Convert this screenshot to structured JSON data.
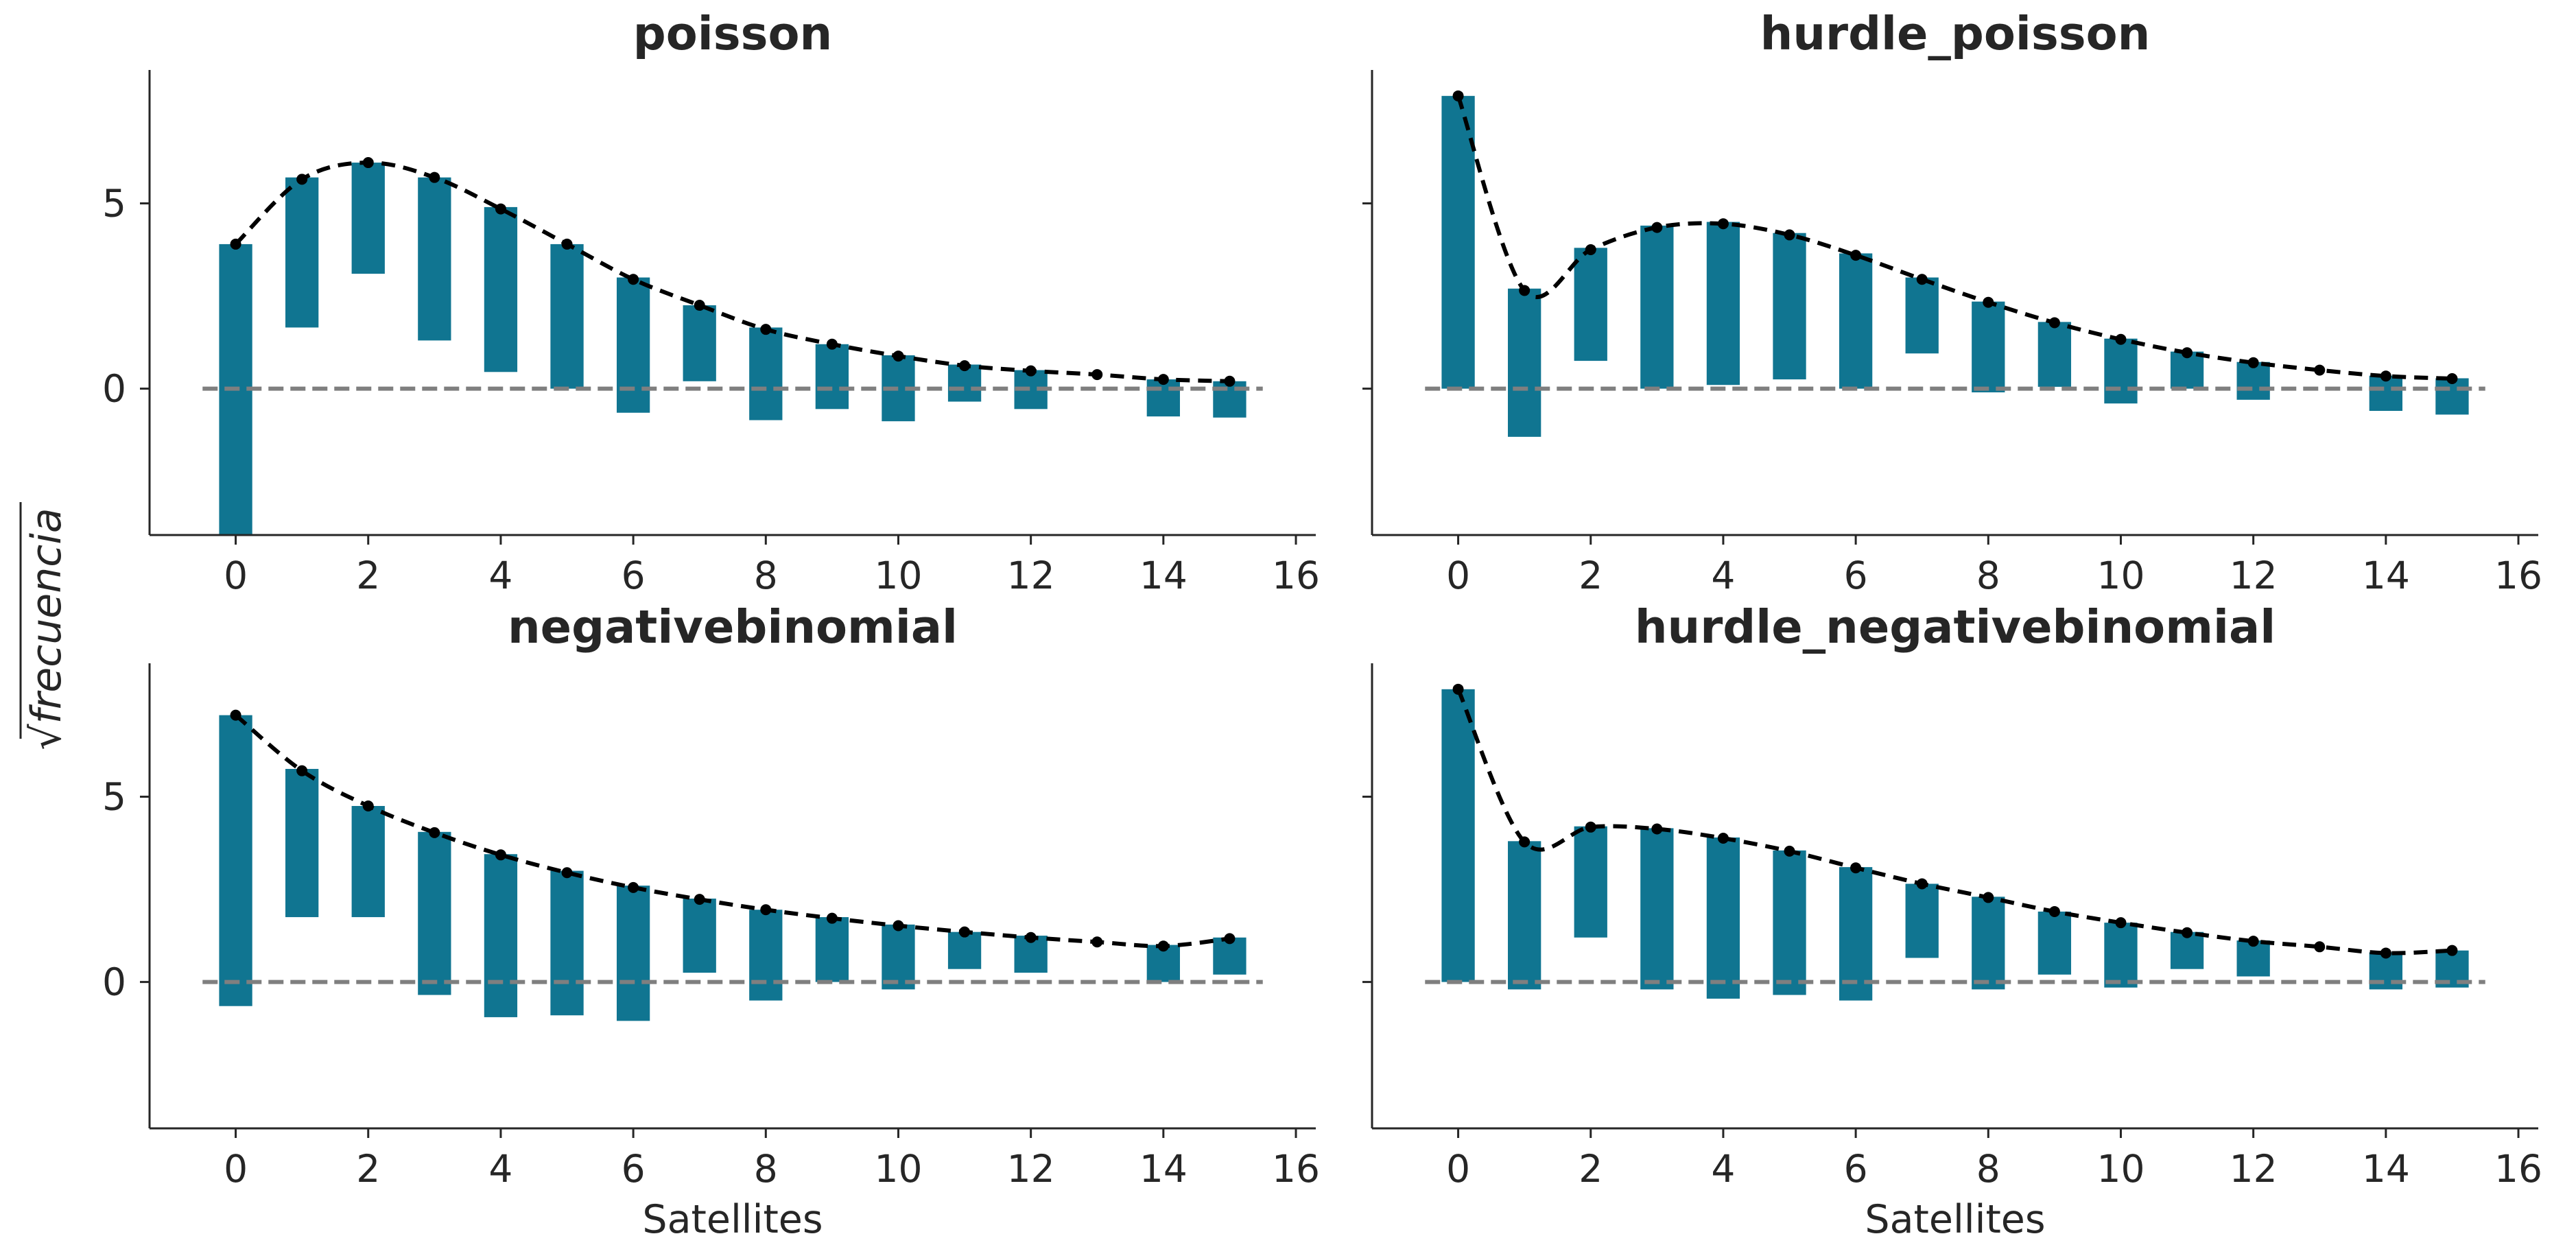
{
  "figure": {
    "ylabel": "frecuencia",
    "ylabel_prefix": "√",
    "colors": {
      "bar": "#107591",
      "line": "#000000",
      "baseline": "#7f7f7f",
      "axis": "#262626"
    }
  },
  "chart_data": [
    {
      "type": "bar",
      "title": "poisson",
      "xlabel": "",
      "xlim": [
        -1.3,
        16.3
      ],
      "ylim": [
        -3.95,
        8.6
      ],
      "xticks": [
        "0",
        "2",
        "4",
        "6",
        "8",
        "10",
        "12",
        "14",
        "16"
      ],
      "yticks": [
        "0",
        "5"
      ],
      "x": [
        0,
        1,
        2,
        3,
        4,
        5,
        6,
        7,
        8,
        9,
        10,
        11,
        12,
        13,
        14,
        15
      ],
      "bar_top": [
        3.9,
        5.7,
        6.1,
        5.7,
        4.9,
        3.9,
        3.0,
        2.25,
        1.65,
        1.2,
        0.9,
        0.65,
        0.5,
        0.38,
        0.25,
        0.2
      ],
      "bar_bottom": [
        -3.95,
        1.65,
        3.1,
        1.3,
        0.45,
        0.0,
        -0.65,
        0.2,
        -0.85,
        -0.55,
        -0.88,
        -0.35,
        -0.55,
        0.38,
        -0.75,
        -0.78
      ],
      "expected": [
        3.9,
        5.65,
        6.1,
        5.7,
        4.85,
        3.9,
        2.95,
        2.25,
        1.6,
        1.2,
        0.88,
        0.62,
        0.48,
        0.38,
        0.25,
        0.2
      ]
    },
    {
      "type": "bar",
      "title": "hurdle_poisson",
      "xlabel": "",
      "xlim": [
        -1.3,
        16.3
      ],
      "ylim": [
        -3.95,
        8.6
      ],
      "xticks": [
        "0",
        "2",
        "4",
        "6",
        "8",
        "10",
        "12",
        "14",
        "16"
      ],
      "yticks": [],
      "x": [
        0,
        1,
        2,
        3,
        4,
        5,
        6,
        7,
        8,
        9,
        10,
        11,
        12,
        13,
        14,
        15
      ],
      "bar_top": [
        7.9,
        2.7,
        3.8,
        4.4,
        4.5,
        4.2,
        3.65,
        3.0,
        2.35,
        1.8,
        1.35,
        1.0,
        0.72,
        0.5,
        0.35,
        0.28
      ],
      "bar_bottom": [
        0.0,
        -1.3,
        0.75,
        0.0,
        0.1,
        0.25,
        0.0,
        0.95,
        -0.1,
        0.05,
        -0.4,
        0.0,
        -0.3,
        0.5,
        -0.6,
        -0.7
      ],
      "expected": [
        7.9,
        2.65,
        3.75,
        4.35,
        4.45,
        4.15,
        3.6,
        2.95,
        2.33,
        1.78,
        1.33,
        0.97,
        0.7,
        0.5,
        0.34,
        0.27
      ]
    },
    {
      "type": "bar",
      "title": "negativebinomial",
      "xlabel": "Satellites",
      "xlim": [
        -1.3,
        16.3
      ],
      "ylim": [
        -3.95,
        8.6
      ],
      "xticks": [
        "0",
        "2",
        "4",
        "6",
        "8",
        "10",
        "12",
        "14",
        "16"
      ],
      "yticks": [
        "0",
        "5"
      ],
      "x": [
        0,
        1,
        2,
        3,
        4,
        5,
        6,
        7,
        8,
        9,
        10,
        11,
        12,
        13,
        14,
        15
      ],
      "bar_top": [
        7.2,
        5.75,
        4.75,
        4.05,
        3.45,
        3.0,
        2.6,
        2.25,
        1.95,
        1.75,
        1.55,
        1.35,
        1.25,
        1.1,
        1.0,
        1.2
      ],
      "bar_bottom": [
        -0.65,
        1.75,
        1.75,
        -0.35,
        -0.95,
        -0.9,
        -1.05,
        0.25,
        -0.5,
        0.0,
        -0.2,
        0.35,
        0.25,
        1.1,
        0.0,
        0.2
      ],
      "expected": [
        7.2,
        5.7,
        4.75,
        4.03,
        3.43,
        2.95,
        2.55,
        2.23,
        1.95,
        1.72,
        1.52,
        1.35,
        1.2,
        1.08,
        0.97,
        1.17
      ]
    },
    {
      "type": "bar",
      "title": "hurdle_negativebinomial",
      "xlabel": "Satellites",
      "xlim": [
        -1.3,
        16.3
      ],
      "ylim": [
        -3.95,
        8.6
      ],
      "xticks": [
        "0",
        "2",
        "4",
        "6",
        "8",
        "10",
        "12",
        "14",
        "16"
      ],
      "yticks": [],
      "x": [
        0,
        1,
        2,
        3,
        4,
        5,
        6,
        7,
        8,
        9,
        10,
        11,
        12,
        13,
        14,
        15
      ],
      "bar_top": [
        7.9,
        3.8,
        4.2,
        4.15,
        3.9,
        3.55,
        3.1,
        2.65,
        2.3,
        1.9,
        1.6,
        1.35,
        1.12,
        0.95,
        0.8,
        0.85
      ],
      "bar_bottom": [
        0.0,
        -0.2,
        1.2,
        -0.2,
        -0.45,
        -0.35,
        -0.5,
        0.65,
        -0.2,
        0.2,
        -0.15,
        0.35,
        0.15,
        0.95,
        -0.2,
        -0.15
      ],
      "expected": [
        7.9,
        3.78,
        4.18,
        4.13,
        3.88,
        3.53,
        3.08,
        2.65,
        2.28,
        1.9,
        1.6,
        1.33,
        1.1,
        0.95,
        0.78,
        0.85
      ]
    }
  ]
}
